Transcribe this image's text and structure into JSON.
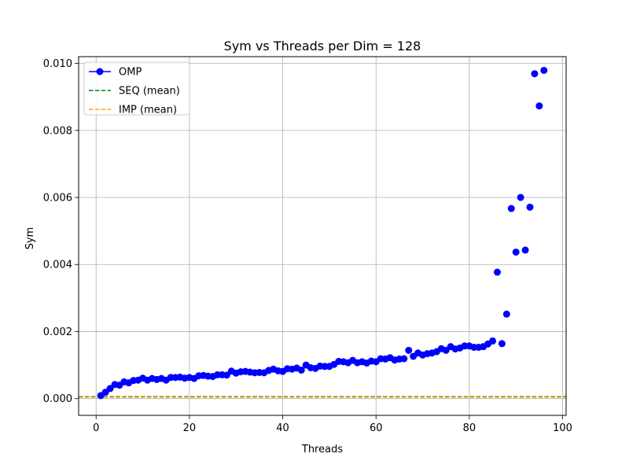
{
  "chart_data": {
    "type": "scatter",
    "title": "Sym vs Threads per Dim = 128",
    "xlabel": "Threads",
    "ylabel": "Sym",
    "xlim": [
      -3.75,
      100.75
    ],
    "ylim": [
      -0.0005,
      0.0102
    ],
    "xticks": [
      0,
      20,
      40,
      60,
      80,
      100
    ],
    "xtick_labels": [
      "0",
      "20",
      "40",
      "60",
      "80",
      "100"
    ],
    "yticks": [
      0.0,
      0.002,
      0.004,
      0.006,
      0.008,
      0.01
    ],
    "ytick_labels": [
      "0.000",
      "0.002",
      "0.004",
      "0.006",
      "0.008",
      "0.010"
    ],
    "grid": true,
    "legend_position": "top-left",
    "series": [
      {
        "name": "OMP",
        "style": "line-marker",
        "color": "#0000ff",
        "x": [
          1,
          2,
          3,
          4,
          5,
          6,
          7,
          8,
          9,
          10,
          11,
          12,
          13,
          14,
          15,
          16,
          17,
          18,
          19,
          20,
          21,
          22,
          23,
          24,
          25,
          26,
          27,
          28,
          29,
          30,
          31,
          32,
          33,
          34,
          35,
          36,
          37,
          38,
          39,
          40,
          41,
          42,
          43,
          44,
          45,
          46,
          47,
          48,
          49,
          50,
          51,
          52,
          53,
          54,
          55,
          56,
          57,
          58,
          59,
          60,
          61,
          62,
          63,
          64,
          65,
          66,
          67,
          68,
          69,
          70,
          71,
          72,
          73,
          74,
          75,
          76,
          77,
          78,
          79,
          80,
          81,
          82,
          83,
          84,
          85,
          86,
          87,
          88,
          89,
          90,
          91,
          92,
          93,
          94,
          95,
          96
        ],
        "y": [
          9e-05,
          0.00019,
          0.0003,
          0.00042,
          0.0004,
          0.0005,
          0.00047,
          0.00054,
          0.00055,
          0.00061,
          0.00055,
          0.0006,
          0.00057,
          0.0006,
          0.00055,
          0.00063,
          0.00063,
          0.00064,
          0.00061,
          0.00063,
          0.0006,
          0.00068,
          0.00069,
          0.00067,
          0.00066,
          0.00071,
          0.00071,
          0.0007,
          0.00082,
          0.00076,
          0.0008,
          0.00081,
          0.00079,
          0.00077,
          0.00078,
          0.00077,
          0.00084,
          0.00088,
          0.00083,
          0.00081,
          0.00089,
          0.00088,
          0.00091,
          0.00085,
          0.001,
          0.00092,
          0.0009,
          0.00097,
          0.00096,
          0.00096,
          0.00102,
          0.00111,
          0.0011,
          0.00107,
          0.00114,
          0.00107,
          0.0011,
          0.00106,
          0.00112,
          0.0011,
          0.00119,
          0.00118,
          0.00122,
          0.00115,
          0.00118,
          0.00119,
          0.00144,
          0.00126,
          0.00136,
          0.0013,
          0.00134,
          0.00136,
          0.0014,
          0.00149,
          0.00144,
          0.00155,
          0.00148,
          0.00151,
          0.00157,
          0.00157,
          0.00153,
          0.00153,
          0.00155,
          0.00163,
          0.00172,
          0.00377,
          0.00164,
          0.00252,
          0.00567,
          0.00437,
          0.006,
          0.00443,
          0.00571,
          0.00969,
          0.00873,
          0.00979
        ]
      },
      {
        "name": "SEQ (mean)",
        "style": "dashed-hline",
        "color": "#008000",
        "y": 5e-05
      },
      {
        "name": "IMP (mean)",
        "style": "dashed-hline",
        "color": "#ffa500",
        "y": 6.5e-05
      }
    ]
  }
}
